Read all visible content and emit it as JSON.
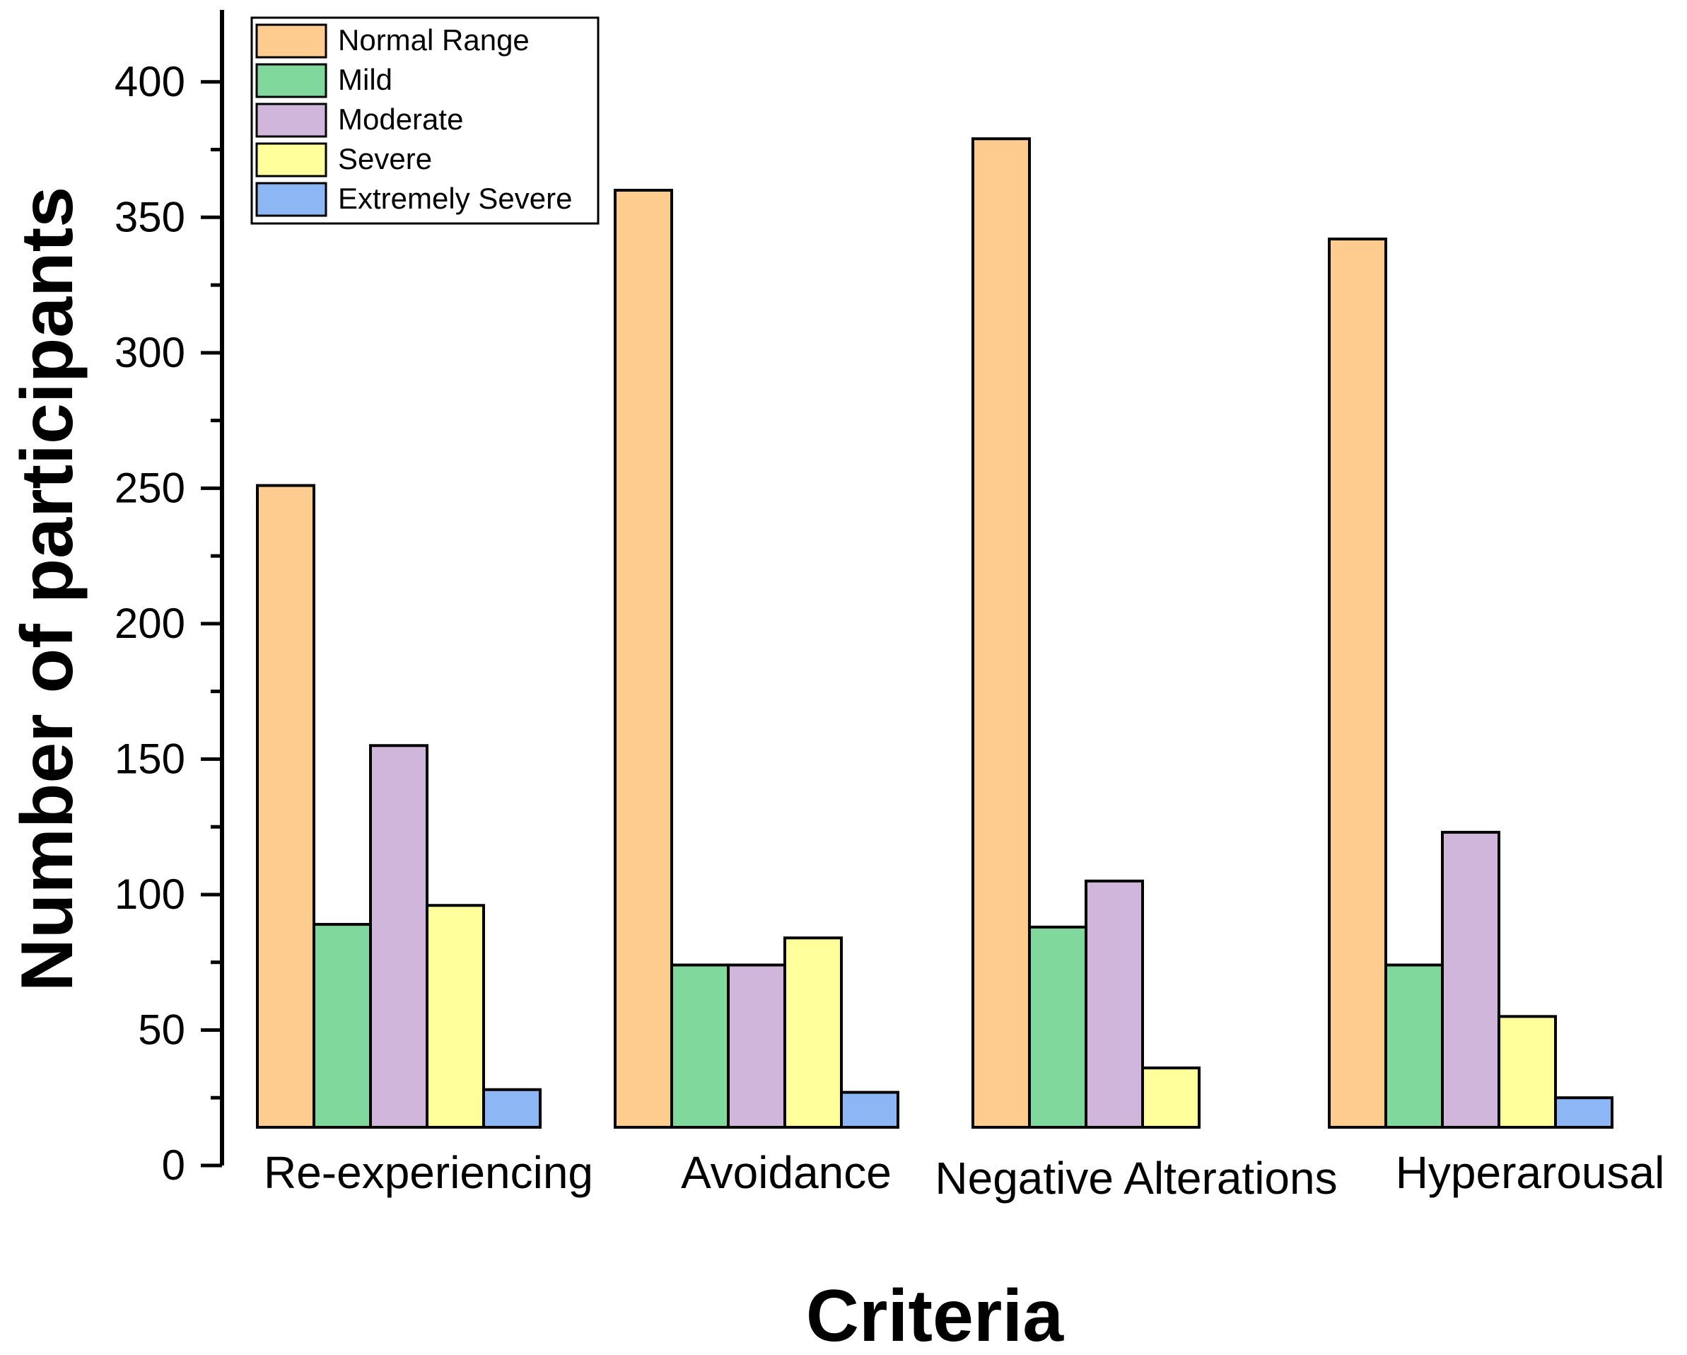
{
  "chart_data": {
    "type": "bar",
    "title": "",
    "xlabel": "Criteria",
    "ylabel": "Number of participants",
    "categories": [
      "Re-experiencing",
      "Avoidance",
      "Negative Alterations",
      "Hyperarousal"
    ],
    "series": [
      {
        "name": "Normal Range",
        "color": "#FFCC90",
        "values": [
          251,
          360,
          379,
          342
        ]
      },
      {
        "name": "Mild",
        "color": "#80D89C",
        "values": [
          89,
          74,
          88,
          74
        ]
      },
      {
        "name": "Moderate",
        "color": "#CFB6DA",
        "values": [
          155,
          74,
          105,
          123
        ]
      },
      {
        "name": "Severe",
        "color": "#FFFF9C",
        "values": [
          96,
          84,
          36,
          55
        ]
      },
      {
        "name": "Extremely Severe",
        "color": "#8DB6F4",
        "values": [
          28,
          27,
          0,
          25
        ]
      }
    ],
    "ylim": [
      0,
      420
    ],
    "yticks": [
      "0",
      "50",
      "100",
      "150",
      "200",
      "250",
      "300",
      "350",
      "400"
    ],
    "legend_position": "top-left",
    "grid": false
  }
}
